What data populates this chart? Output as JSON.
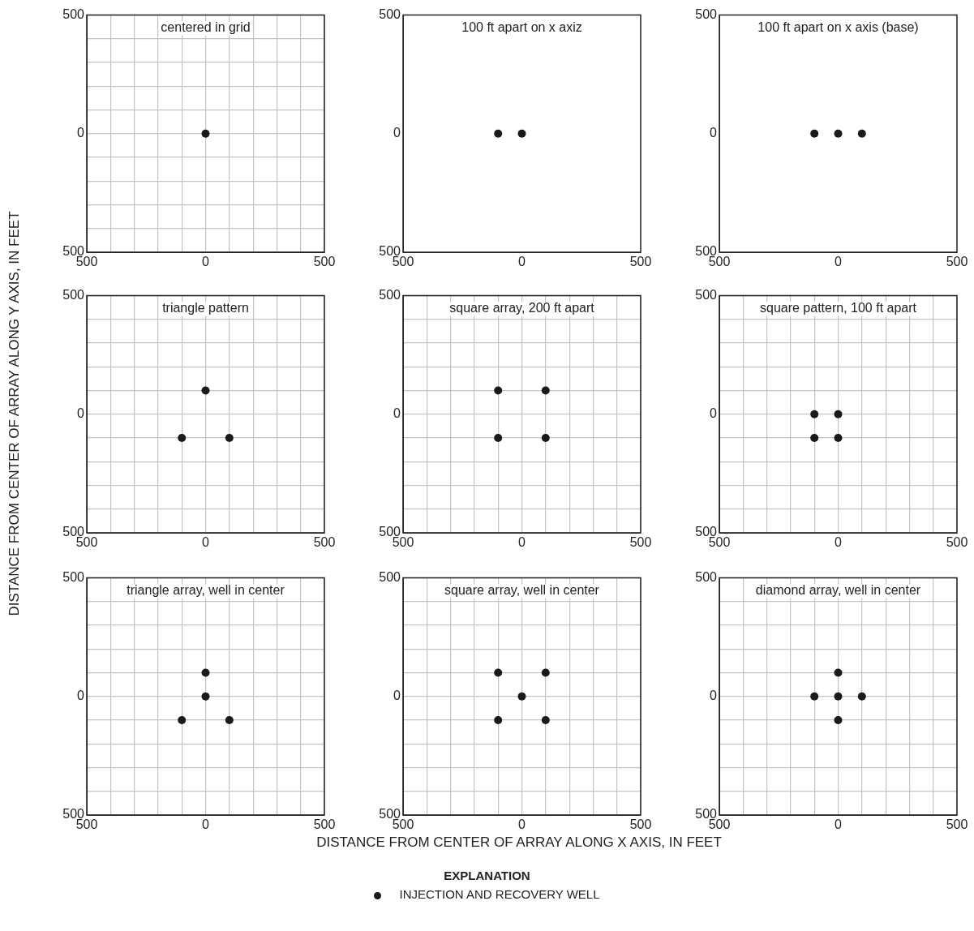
{
  "chart_data": [
    {
      "type": "scatter",
      "title": "centered in grid",
      "series": [
        {
          "color": "#1a1a1a",
          "x": [
            0
          ],
          "values": [
            0
          ]
        }
      ],
      "xlim": [
        -500,
        500
      ],
      "ylim": [
        -500,
        500
      ],
      "xticks": [
        {
          "value": -500,
          "label": "500"
        },
        {
          "value": -400,
          "label": null
        },
        {
          "value": -300,
          "label": null
        },
        {
          "value": -200,
          "label": null
        },
        {
          "value": -100,
          "label": null
        },
        {
          "value": 0,
          "label": "0"
        },
        {
          "value": 100,
          "label": null
        },
        {
          "value": 200,
          "label": null
        },
        {
          "value": 300,
          "label": null
        },
        {
          "value": 400,
          "label": null
        },
        {
          "value": 500,
          "label": "500"
        }
      ],
      "yticks": [
        {
          "value": -500,
          "label": "500"
        },
        {
          "value": -400,
          "label": null
        },
        {
          "value": -300,
          "label": null
        },
        {
          "value": -200,
          "label": null
        },
        {
          "value": -100,
          "label": null
        },
        {
          "value": 0,
          "label": "0"
        },
        {
          "value": 100,
          "label": null
        },
        {
          "value": 200,
          "label": null
        },
        {
          "value": 300,
          "label": null
        },
        {
          "value": 400,
          "label": null
        },
        {
          "value": 500,
          "label": "500"
        }
      ],
      "grid": true,
      "marker": "circle"
    },
    {
      "type": "scatter",
      "title": "100 ft apart on x axiz",
      "series": [
        {
          "color": "#1a1a1a",
          "x": [
            -100,
            0
          ],
          "values": [
            0,
            0
          ]
        }
      ],
      "xlim": [
        -500,
        500
      ],
      "ylim": [
        -500,
        500
      ],
      "xticks": [
        {
          "value": -500,
          "label": "500"
        },
        {
          "value": 0,
          "label": "0"
        },
        {
          "value": 500,
          "label": "500"
        }
      ],
      "yticks": [
        {
          "value": -500,
          "label": "500"
        },
        {
          "value": 0,
          "label": "0"
        },
        {
          "value": 500,
          "label": "500"
        }
      ],
      "grid": false,
      "marker": "circle"
    },
    {
      "type": "scatter",
      "title": "100 ft apart on x axis (base)",
      "series": [
        {
          "color": "#1a1a1a",
          "x": [
            -100,
            0,
            100
          ],
          "values": [
            0,
            0,
            0
          ]
        }
      ],
      "xlim": [
        -500,
        500
      ],
      "ylim": [
        -500,
        500
      ],
      "xticks": [
        {
          "value": -500,
          "label": "500"
        },
        {
          "value": 0,
          "label": "0"
        },
        {
          "value": 500,
          "label": "500"
        }
      ],
      "yticks": [
        {
          "value": -500,
          "label": "500"
        },
        {
          "value": 0,
          "label": "0"
        },
        {
          "value": 500,
          "label": "500"
        }
      ],
      "grid": false,
      "marker": "circle"
    },
    {
      "type": "scatter",
      "title": "triangle pattern",
      "ylabel": "DISTANCE FROM CENTER OF ARRAY ALONG Y AXIS, IN FEET",
      "series": [
        {
          "color": "#1a1a1a",
          "x": [
            0,
            -100,
            100
          ],
          "values": [
            100,
            -100,
            -100
          ]
        }
      ],
      "xlim": [
        -500,
        500
      ],
      "ylim": [
        -500,
        500
      ],
      "xticks": [
        {
          "value": -500,
          "label": "500"
        },
        {
          "value": -400,
          "label": null
        },
        {
          "value": -300,
          "label": null
        },
        {
          "value": -200,
          "label": null
        },
        {
          "value": -100,
          "label": null
        },
        {
          "value": 0,
          "label": "0"
        },
        {
          "value": 100,
          "label": null
        },
        {
          "value": 200,
          "label": null
        },
        {
          "value": 300,
          "label": null
        },
        {
          "value": 400,
          "label": null
        },
        {
          "value": 500,
          "label": "500"
        }
      ],
      "yticks": [
        {
          "value": -500,
          "label": "500"
        },
        {
          "value": -400,
          "label": null
        },
        {
          "value": -300,
          "label": null
        },
        {
          "value": -200,
          "label": null
        },
        {
          "value": -100,
          "label": null
        },
        {
          "value": 0,
          "label": "0"
        },
        {
          "value": 100,
          "label": null
        },
        {
          "value": 200,
          "label": null
        },
        {
          "value": 300,
          "label": null
        },
        {
          "value": 400,
          "label": null
        },
        {
          "value": 500,
          "label": "500"
        }
      ],
      "grid": true,
      "marker": "circle"
    },
    {
      "type": "scatter",
      "title": "square array, 200 ft apart",
      "series": [
        {
          "color": "#1a1a1a",
          "x": [
            -100,
            100,
            -100,
            100
          ],
          "values": [
            100,
            100,
            -100,
            -100
          ]
        }
      ],
      "xlim": [
        -500,
        500
      ],
      "ylim": [
        -500,
        500
      ],
      "xticks": [
        {
          "value": -500,
          "label": "500"
        },
        {
          "value": -400,
          "label": null
        },
        {
          "value": -300,
          "label": null
        },
        {
          "value": -200,
          "label": null
        },
        {
          "value": -100,
          "label": null
        },
        {
          "value": 0,
          "label": "0"
        },
        {
          "value": 100,
          "label": null
        },
        {
          "value": 200,
          "label": null
        },
        {
          "value": 300,
          "label": null
        },
        {
          "value": 400,
          "label": null
        },
        {
          "value": 500,
          "label": "500"
        }
      ],
      "yticks": [
        {
          "value": -500,
          "label": "500"
        },
        {
          "value": -400,
          "label": null
        },
        {
          "value": -300,
          "label": null
        },
        {
          "value": -200,
          "label": null
        },
        {
          "value": -100,
          "label": null
        },
        {
          "value": 0,
          "label": "0"
        },
        {
          "value": 100,
          "label": null
        },
        {
          "value": 200,
          "label": null
        },
        {
          "value": 300,
          "label": null
        },
        {
          "value": 400,
          "label": null
        },
        {
          "value": 500,
          "label": "500"
        }
      ],
      "grid": true,
      "marker": "circle"
    },
    {
      "type": "scatter",
      "title": "square pattern, 100 ft apart",
      "series": [
        {
          "color": "#1a1a1a",
          "x": [
            -100,
            0,
            -100,
            0
          ],
          "values": [
            0,
            0,
            -100,
            -100
          ]
        }
      ],
      "xlim": [
        -500,
        500
      ],
      "ylim": [
        -500,
        500
      ],
      "xticks": [
        {
          "value": -500,
          "label": "500"
        },
        {
          "value": -400,
          "label": null
        },
        {
          "value": -300,
          "label": null
        },
        {
          "value": -200,
          "label": null
        },
        {
          "value": -100,
          "label": null
        },
        {
          "value": 0,
          "label": "0"
        },
        {
          "value": 100,
          "label": null
        },
        {
          "value": 200,
          "label": null
        },
        {
          "value": 300,
          "label": null
        },
        {
          "value": 400,
          "label": null
        },
        {
          "value": 500,
          "label": "500"
        }
      ],
      "yticks": [
        {
          "value": -500,
          "label": "500"
        },
        {
          "value": -400,
          "label": null
        },
        {
          "value": -300,
          "label": null
        },
        {
          "value": -200,
          "label": null
        },
        {
          "value": -100,
          "label": null
        },
        {
          "value": 0,
          "label": "0"
        },
        {
          "value": 100,
          "label": null
        },
        {
          "value": 200,
          "label": null
        },
        {
          "value": 300,
          "label": null
        },
        {
          "value": 400,
          "label": null
        },
        {
          "value": 500,
          "label": "500"
        }
      ],
      "grid": true,
      "marker": "circle"
    },
    {
      "type": "scatter",
      "title": "triangle array, well in center",
      "series": [
        {
          "color": "#1a1a1a",
          "x": [
            0,
            0,
            -100,
            100
          ],
          "values": [
            100,
            0,
            -100,
            -100
          ]
        }
      ],
      "xlim": [
        -500,
        500
      ],
      "ylim": [
        -500,
        500
      ],
      "xticks": [
        {
          "value": -500,
          "label": "500"
        },
        {
          "value": -400,
          "label": null
        },
        {
          "value": -300,
          "label": null
        },
        {
          "value": -200,
          "label": null
        },
        {
          "value": -100,
          "label": null
        },
        {
          "value": 0,
          "label": "0"
        },
        {
          "value": 100,
          "label": null
        },
        {
          "value": 200,
          "label": null
        },
        {
          "value": 300,
          "label": null
        },
        {
          "value": 400,
          "label": null
        },
        {
          "value": 500,
          "label": "500"
        }
      ],
      "yticks": [
        {
          "value": -500,
          "label": "500"
        },
        {
          "value": -400,
          "label": null
        },
        {
          "value": -300,
          "label": null
        },
        {
          "value": -200,
          "label": null
        },
        {
          "value": -100,
          "label": null
        },
        {
          "value": 0,
          "label": "0"
        },
        {
          "value": 100,
          "label": null
        },
        {
          "value": 200,
          "label": null
        },
        {
          "value": 300,
          "label": null
        },
        {
          "value": 400,
          "label": null
        },
        {
          "value": 500,
          "label": "500"
        }
      ],
      "grid": true,
      "marker": "circle"
    },
    {
      "type": "scatter",
      "title": "square array, well in center",
      "xlabel": "DISTANCE FROM CENTER OF ARRAY ALONG X AXIS, IN FEET",
      "legend": "bottom",
      "legend_title": "EXPLANATION",
      "series": [
        {
          "name": "INJECTION AND RECOVERY WELL",
          "color": "#1a1a1a",
          "x": [
            -100,
            100,
            0,
            -100,
            100
          ],
          "values": [
            100,
            100,
            0,
            -100,
            -100
          ]
        }
      ],
      "xlim": [
        -500,
        500
      ],
      "ylim": [
        -500,
        500
      ],
      "xticks": [
        {
          "value": -500,
          "label": "500"
        },
        {
          "value": -400,
          "label": null
        },
        {
          "value": -300,
          "label": null
        },
        {
          "value": -200,
          "label": null
        },
        {
          "value": -100,
          "label": null
        },
        {
          "value": 0,
          "label": "0"
        },
        {
          "value": 100,
          "label": null
        },
        {
          "value": 200,
          "label": null
        },
        {
          "value": 300,
          "label": null
        },
        {
          "value": 400,
          "label": null
        },
        {
          "value": 500,
          "label": "500"
        }
      ],
      "yticks": [
        {
          "value": -500,
          "label": "500"
        },
        {
          "value": -400,
          "label": null
        },
        {
          "value": -300,
          "label": null
        },
        {
          "value": -200,
          "label": null
        },
        {
          "value": -100,
          "label": null
        },
        {
          "value": 0,
          "label": "0"
        },
        {
          "value": 100,
          "label": null
        },
        {
          "value": 200,
          "label": null
        },
        {
          "value": 300,
          "label": null
        },
        {
          "value": 400,
          "label": null
        },
        {
          "value": 500,
          "label": "500"
        }
      ],
      "grid": true,
      "marker": "circle"
    },
    {
      "type": "scatter",
      "title": "diamond array, well in center",
      "series": [
        {
          "color": "#1a1a1a",
          "x": [
            0,
            -100,
            0,
            100,
            0
          ],
          "values": [
            100,
            0,
            0,
            0,
            -100
          ]
        }
      ],
      "xlim": [
        -500,
        500
      ],
      "ylim": [
        -500,
        500
      ],
      "xticks": [
        {
          "value": -500,
          "label": "500"
        },
        {
          "value": -400,
          "label": null
        },
        {
          "value": -300,
          "label": null
        },
        {
          "value": -200,
          "label": null
        },
        {
          "value": -100,
          "label": null
        },
        {
          "value": 0,
          "label": "0"
        },
        {
          "value": 100,
          "label": null
        },
        {
          "value": 200,
          "label": null
        },
        {
          "value": 300,
          "label": null
        },
        {
          "value": 400,
          "label": null
        },
        {
          "value": 500,
          "label": "500"
        }
      ],
      "yticks": [
        {
          "value": -500,
          "label": "500"
        },
        {
          "value": -400,
          "label": null
        },
        {
          "value": -300,
          "label": null
        },
        {
          "value": -200,
          "label": null
        },
        {
          "value": -100,
          "label": null
        },
        {
          "value": 0,
          "label": "0"
        },
        {
          "value": 100,
          "label": null
        },
        {
          "value": 200,
          "label": null
        },
        {
          "value": 300,
          "label": null
        },
        {
          "value": 400,
          "label": null
        },
        {
          "value": 500,
          "label": "500"
        }
      ],
      "grid": true,
      "marker": "circle"
    }
  ]
}
